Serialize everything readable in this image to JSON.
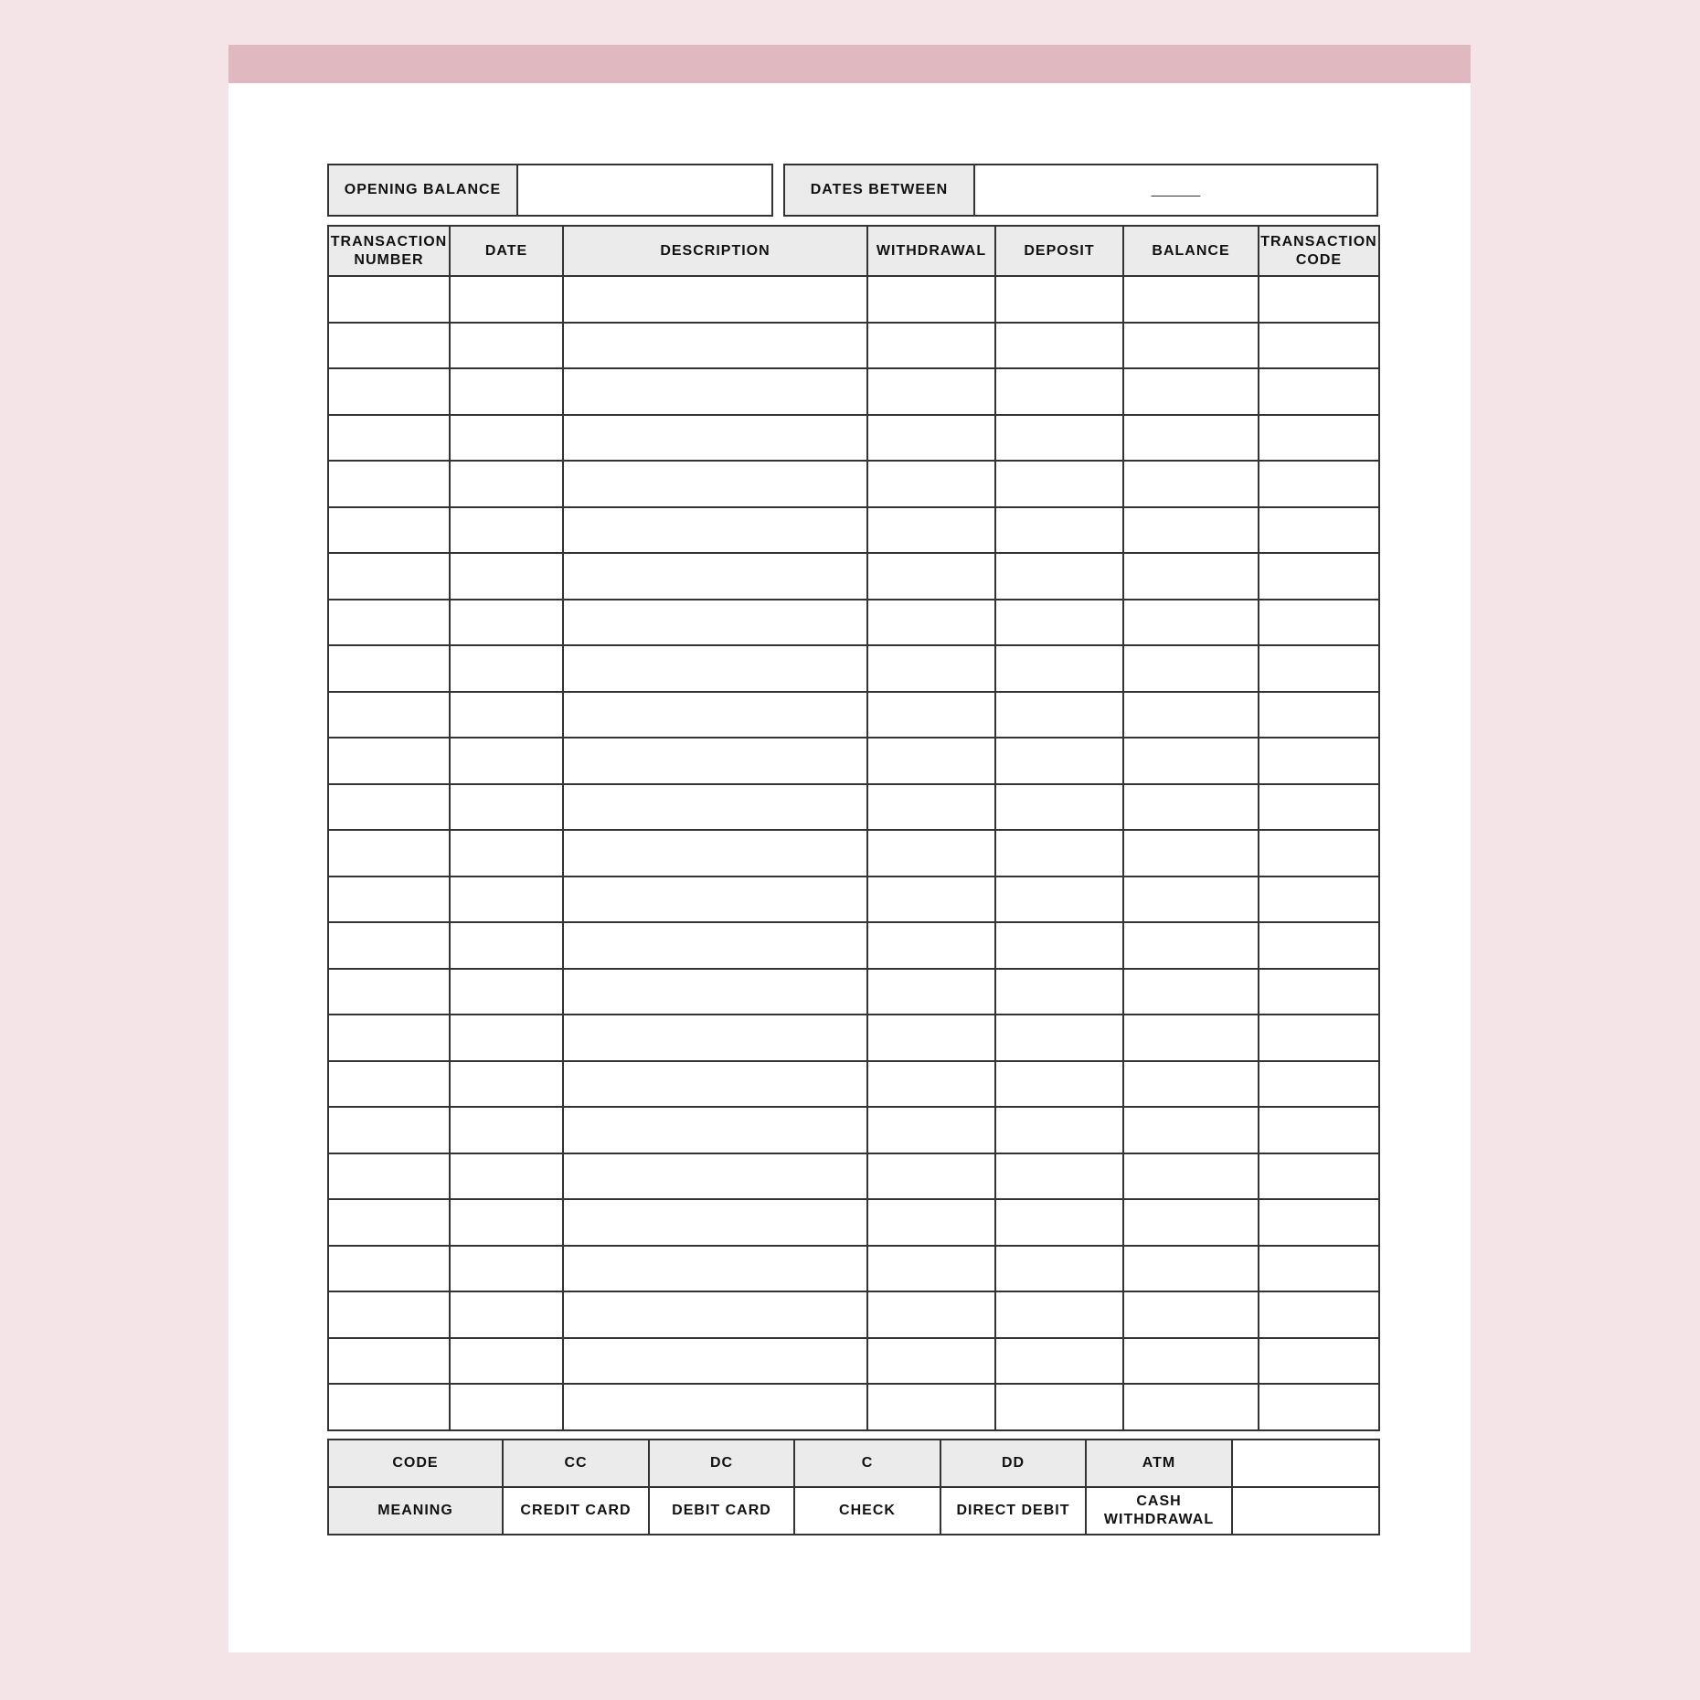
{
  "colors": {
    "background": "#f4e3e7",
    "header_bar": "#dfb8c0",
    "label_fill": "#ebebeb",
    "border": "#333333"
  },
  "opening_balance": {
    "label": "OPENING BALANCE",
    "value": ""
  },
  "dates_between": {
    "label": "DATES BETWEEN",
    "separator": "______"
  },
  "ledger": {
    "columns": [
      "TRANSACTION NUMBER",
      "DATE",
      "DESCRIPTION",
      "WITHDRAWAL",
      "DEPOSIT",
      "BALANCE",
      "TRANSACTION CODE"
    ],
    "row_count": 25
  },
  "codes": {
    "code_label": "CODE",
    "meaning_label": "MEANING",
    "items": [
      {
        "code": "CC",
        "meaning": "CREDIT CARD"
      },
      {
        "code": "DC",
        "meaning": "DEBIT CARD"
      },
      {
        "code": "C",
        "meaning": "CHECK"
      },
      {
        "code": "DD",
        "meaning": "DIRECT DEBIT"
      },
      {
        "code": "ATM",
        "meaning": "CASH WITHDRAWAL"
      }
    ]
  }
}
